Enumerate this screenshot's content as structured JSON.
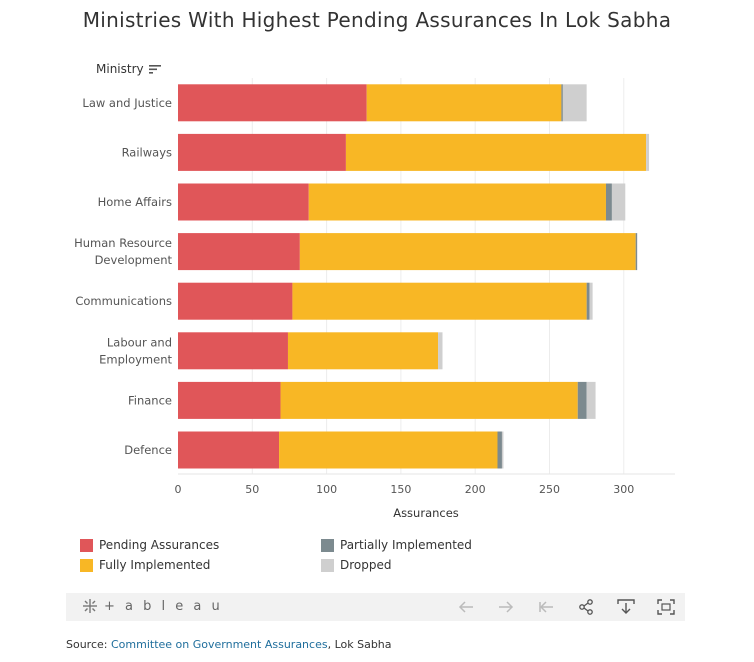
{
  "title": "Ministries With Highest Pending Assurances In Lok Sabha",
  "dimension_header": "Ministry",
  "colors": {
    "pending": "#e05659",
    "fully": "#f8b725",
    "partial": "#7c8a8f",
    "dropped": "#cfcfcf"
  },
  "chart_data": {
    "type": "bar",
    "orientation": "horizontal",
    "stacked": true,
    "title": "Ministries With Highest Pending Assurances In Lok Sabha",
    "ylabel": "Ministry",
    "xlabel": "Assurances",
    "xlim": [
      0,
      330
    ],
    "xticks": [
      0,
      50,
      100,
      150,
      200,
      250,
      300
    ],
    "gridlines": true,
    "categories": [
      [
        "Law and Justice"
      ],
      [
        "Railways"
      ],
      [
        "Home Affairs"
      ],
      [
        "Human Resource",
        "Development"
      ],
      [
        "Communications"
      ],
      [
        "Labour and",
        "Employment"
      ],
      [
        "Finance"
      ],
      [
        "Defence"
      ]
    ],
    "series": [
      {
        "name": "Pending Assurances",
        "color": "#e05659",
        "values": [
          127,
          113,
          88,
          82,
          77,
          74,
          69,
          68
        ]
      },
      {
        "name": "Fully Implemented",
        "color": "#f8b725",
        "values": [
          131,
          202,
          200,
          226,
          198,
          101,
          200,
          147
        ]
      },
      {
        "name": "Partially Implemented",
        "color": "#7c8a8f",
        "values": [
          1,
          0,
          4,
          1,
          2,
          0,
          6,
          3
        ]
      },
      {
        "name": "Dropped",
        "color": "#cfcfcf",
        "values": [
          16,
          2,
          9,
          0,
          2,
          3,
          6,
          1
        ]
      }
    ],
    "legend_position": "bottom"
  },
  "legend": [
    {
      "label": "Pending Assurances",
      "color": "#e05659"
    },
    {
      "label": "Partially Implemented",
      "color": "#7c8a8f"
    },
    {
      "label": "Fully Implemented",
      "color": "#f8b725"
    },
    {
      "label": "Dropped",
      "color": "#cfcfcf"
    }
  ],
  "toolbar": {
    "logo_text": "+ a b l e a u"
  },
  "source": {
    "prefix": "Source: ",
    "link_text": "Committee on Government Assurances",
    "suffix": ", Lok Sabha"
  }
}
